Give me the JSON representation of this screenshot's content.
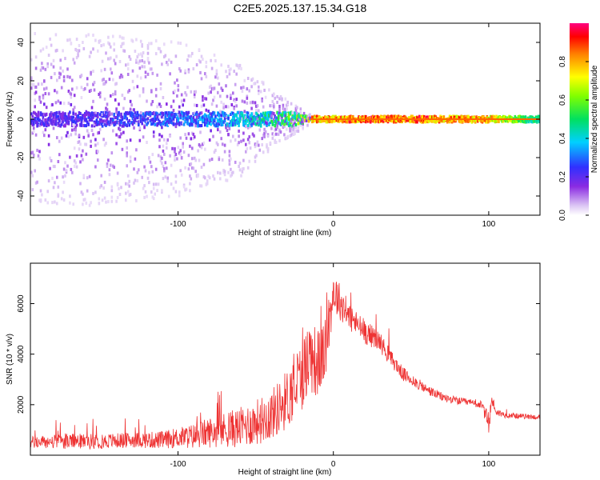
{
  "title": "C2E5.2025.137.15.34.G18",
  "chart_data": [
    {
      "type": "heatmap",
      "title": "C2E5.2025.137.15.34.G18",
      "xlabel": "Height of straight line (km)",
      "ylabel": "Frequency (Hz)",
      "xlim": [
        -195,
        133
      ],
      "ylim": [
        -50,
        50
      ],
      "xticks": [
        -100,
        0,
        100
      ],
      "xtick_labels": [
        "-100",
        "0",
        "100"
      ],
      "yticks": [
        -40,
        -20,
        0,
        20,
        40
      ],
      "ytick_labels": [
        "-40",
        "-20",
        "0",
        "20",
        "40"
      ],
      "colorbar": {
        "label": "Normalized spectral amplitude",
        "range": [
          0,
          1
        ],
        "ticks": [
          0,
          0.2,
          0.4,
          0.6,
          0.8
        ],
        "tick_labels": [
          "0.0",
          "0.2",
          "0.4",
          "0.6",
          "0.8"
        ]
      },
      "band_profile": {
        "height_km": [
          -195,
          -150,
          -100,
          -60,
          -40,
          -22,
          -15,
          0,
          20,
          60,
          100,
          133
        ],
        "half_width_hz": [
          45,
          45,
          40,
          30,
          15,
          6,
          2,
          1.5,
          1.5,
          1.5,
          2,
          3
        ],
        "core_amplitude": [
          0.25,
          0.28,
          0.35,
          0.45,
          0.55,
          0.7,
          0.9,
          0.95,
          0.98,
          0.98,
          0.9,
          0.5
        ]
      },
      "grid": false
    },
    {
      "type": "line",
      "xlabel": "Height of straight line (km)",
      "ylabel": "SNR (10 * v/v)",
      "xlim": [
        -195,
        133
      ],
      "ylim": [
        0,
        7600
      ],
      "xticks": [
        -100,
        0,
        100
      ],
      "xtick_labels": [
        "-100",
        "0",
        "100"
      ],
      "yticks": [
        2000,
        4000,
        6000
      ],
      "ytick_labels": [
        "2000",
        "4000",
        "6000"
      ],
      "color": "#ee3333",
      "series": [
        {
          "name": "SNR",
          "x": [
            -195,
            -170,
            -150,
            -130,
            -110,
            -100,
            -90,
            -80,
            -70,
            -60,
            -50,
            -40,
            -30,
            -20,
            -15,
            -10,
            -5,
            0,
            5,
            10,
            15,
            20,
            25,
            30,
            35,
            40,
            45,
            50,
            55,
            60,
            70,
            80,
            85,
            90,
            95,
            98,
            100,
            102,
            105,
            110,
            120,
            133
          ],
          "y": [
            500,
            550,
            550,
            600,
            600,
            700,
            750,
            900,
            1000,
            1100,
            1300,
            1600,
            2200,
            3200,
            4000,
            3600,
            4200,
            6500,
            6000,
            5500,
            5200,
            4900,
            4700,
            4500,
            4000,
            3600,
            3200,
            3000,
            2800,
            2600,
            2300,
            2150,
            2100,
            2050,
            2000,
            1600,
            1200,
            2200,
            1700,
            1600,
            1550,
            1500
          ],
          "noise_amplitude": [
            250,
            300,
            300,
            300,
            350,
            400,
            500,
            600,
            700,
            800,
            900,
            1000,
            1200,
            1400,
            1500,
            1400,
            1200,
            900,
            700,
            600,
            500,
            500,
            450,
            400,
            350,
            300,
            280,
            250,
            220,
            200,
            180,
            150,
            150,
            150,
            150,
            300,
            400,
            300,
            150,
            120,
            100,
            100
          ]
        }
      ],
      "grid": false
    }
  ]
}
